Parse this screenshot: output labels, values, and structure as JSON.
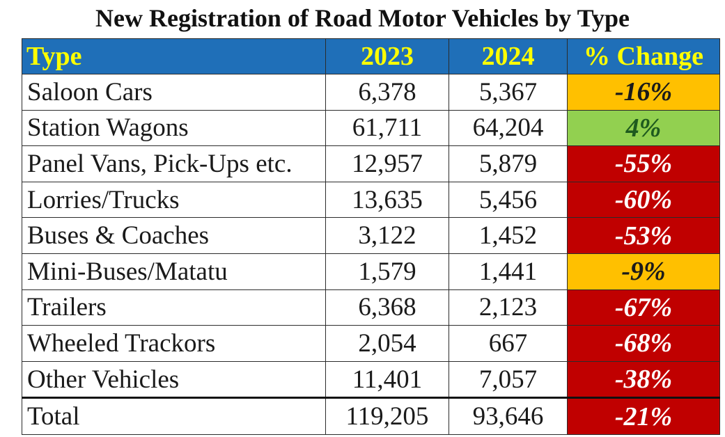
{
  "title": "New Registration of Road Motor Vehicles by Type",
  "colors": {
    "header_bg": "#1f6fb8",
    "header_text": "#ffff00",
    "decline_moderate": "#ffc000",
    "increase": "#92d050",
    "decline_severe": "#c00000",
    "text_on_light": "#1a1a1a",
    "text_on_green": "#1e5a1e",
    "text_on_red": "#ffffff"
  },
  "chart_data": {
    "type": "table",
    "title": "New Registration of Road Motor Vehicles by Type",
    "columns": [
      "Type",
      "2023",
      "2024",
      "% Change"
    ],
    "rows": [
      {
        "type": "Saloon Cars",
        "y2023": "6,378",
        "y2024": "5,367",
        "change": "-16%",
        "change_value": -16,
        "status": "decline_moderate"
      },
      {
        "type": "Station Wagons",
        "y2023": "61,711",
        "y2024": "64,204",
        "change": "4%",
        "change_value": 4,
        "status": "increase"
      },
      {
        "type": "Panel Vans, Pick-Ups etc.",
        "y2023": "12,957",
        "y2024": "5,879",
        "change": "-55%",
        "change_value": -55,
        "status": "decline_severe"
      },
      {
        "type": "Lorries/Trucks",
        "y2023": "13,635",
        "y2024": "5,456",
        "change": "-60%",
        "change_value": -60,
        "status": "decline_severe"
      },
      {
        "type": "Buses & Coaches",
        "y2023": "3,122",
        "y2024": "1,452",
        "change": "-53%",
        "change_value": -53,
        "status": "decline_severe"
      },
      {
        "type": "Mini-Buses/Matatu",
        "y2023": "1,579",
        "y2024": "1,441",
        "change": "-9%",
        "change_value": -9,
        "status": "decline_moderate"
      },
      {
        "type": "Trailers",
        "y2023": "6,368",
        "y2024": "2,123",
        "change": "-67%",
        "change_value": -67,
        "status": "decline_severe"
      },
      {
        "type": "Wheeled Trackors",
        "y2023": "2,054",
        "y2024": "667",
        "change": "-68%",
        "change_value": -68,
        "status": "decline_severe"
      },
      {
        "type": "Other Vehicles",
        "y2023": "11,401",
        "y2024": "7,057",
        "change": "-38%",
        "change_value": -38,
        "status": "decline_severe"
      }
    ],
    "total": {
      "type": "Total",
      "y2023": "119,205",
      "y2024": "93,646",
      "change": "-21%",
      "change_value": -21,
      "status": "decline_severe"
    }
  }
}
